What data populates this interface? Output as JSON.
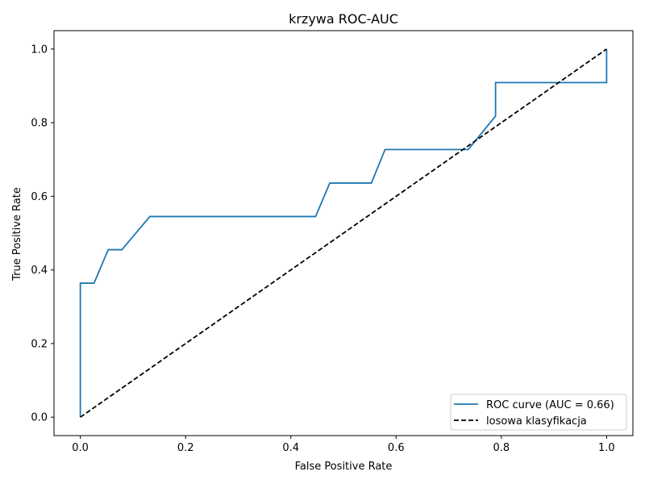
{
  "chart_data": {
    "type": "line",
    "title": "krzywa ROC-AUC",
    "xlabel": "False Positive Rate",
    "ylabel": "True Positive Rate",
    "xlim": [
      -0.05,
      1.05
    ],
    "ylim": [
      -0.05,
      1.05
    ],
    "xticks": [
      "0.0",
      "0.2",
      "0.4",
      "0.6",
      "0.8",
      "1.0"
    ],
    "yticks": [
      "0.0",
      "0.2",
      "0.4",
      "0.6",
      "0.8",
      "1.0"
    ],
    "grid": false,
    "legend_position": "lower-right",
    "series": [
      {
        "name": "ROC curve (AUC = 0.66)",
        "color": "#1f77b4",
        "style": "solid",
        "x": [
          0.0,
          0.0,
          0.026,
          0.053,
          0.079,
          0.132,
          0.447,
          0.474,
          0.553,
          0.579,
          0.737,
          0.789,
          0.789,
          1.0,
          1.0
        ],
        "y": [
          0.0,
          0.364,
          0.364,
          0.455,
          0.455,
          0.545,
          0.545,
          0.636,
          0.636,
          0.727,
          0.727,
          0.818,
          0.909,
          0.909,
          1.0
        ]
      },
      {
        "name": "losowa klasyfikacja",
        "color": "#000000",
        "style": "dashed",
        "x": [
          0.0,
          1.0
        ],
        "y": [
          0.0,
          1.0
        ]
      }
    ]
  }
}
